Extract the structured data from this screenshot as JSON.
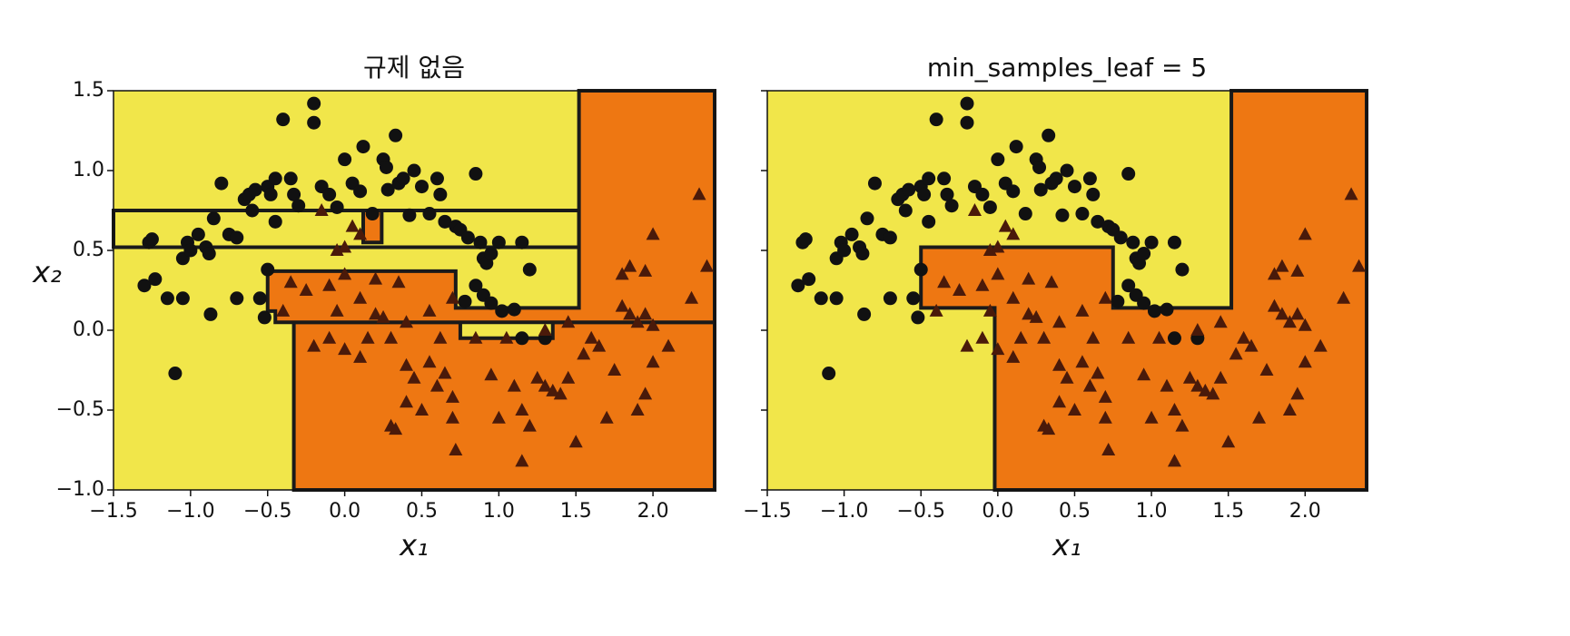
{
  "chart_data": [
    {
      "type": "scatter",
      "title": "규제 없음",
      "x_label": "x₁",
      "y_label": "x₂",
      "xlim": [
        -1.5,
        2.4
      ],
      "ylim": [
        -1.0,
        1.5
      ],
      "xticks": [
        {
          "value": -1.5,
          "label": "−1.5"
        },
        {
          "value": -1.0,
          "label": "−1.0"
        },
        {
          "value": -0.5,
          "label": "−0.5"
        },
        {
          "value": 0.0,
          "label": "0.0"
        },
        0.5,
        {
          "value": 1.0,
          "label": "1.0"
        },
        1.5,
        {
          "value": 2.0,
          "label": "2.0"
        }
      ],
      "yticks": [
        {
          "value": -1.0,
          "label": "−1.0"
        },
        {
          "value": -0.5,
          "label": "−0.5"
        },
        {
          "value": 0.0,
          "label": "0.0"
        },
        0.5,
        {
          "value": 1.0,
          "label": "1.0"
        },
        1.5
      ],
      "ytick_labels": true,
      "background": "#f1e64a",
      "regions": [
        {
          "color": "#f1e64a",
          "polygons": [
            [
              [
                -1.5,
                0.52
              ],
              [
                1.52,
                0.52
              ],
              [
                1.52,
                0.75
              ],
              [
                -1.5,
                0.75
              ]
            ]
          ]
        },
        {
          "color": "#ee7712",
          "polygons": [
            [
              [
                -0.33,
                -1.0
              ],
              [
                -0.33,
                0.05
              ],
              [
                0.75,
                0.05
              ],
              [
                0.75,
                -0.05
              ],
              [
                1.35,
                -0.05
              ],
              [
                1.35,
                0.05
              ],
              [
                2.4,
                0.05
              ],
              [
                2.4,
                -1.0
              ]
            ],
            [
              [
                -0.45,
                0.05
              ],
              [
                -0.45,
                0.12
              ],
              [
                -0.5,
                0.12
              ],
              [
                -0.5,
                0.37
              ],
              [
                0.72,
                0.37
              ],
              [
                0.72,
                0.14
              ],
              [
                1.52,
                0.14
              ],
              [
                1.52,
                1.5
              ],
              [
                2.4,
                1.5
              ],
              [
                2.4,
                0.05
              ]
            ],
            [
              [
                0.12,
                0.55
              ],
              [
                0.24,
                0.55
              ],
              [
                0.24,
                0.75
              ],
              [
                0.12,
                0.75
              ]
            ]
          ]
        }
      ],
      "series": [
        {
          "marker": "circle",
          "color": "#111111",
          "x": [
            -1.27,
            -1.25,
            -1.3,
            -1.23,
            -1.15,
            -1.05,
            -1.1,
            -1.05,
            -1.02,
            -1.0,
            -0.95,
            -0.9,
            -0.88,
            -0.87,
            -0.85,
            -0.8,
            -0.75,
            -0.7,
            -0.7,
            -0.65,
            -0.62,
            -0.6,
            -0.58,
            -0.55,
            -0.52,
            -0.5,
            -0.5,
            -0.48,
            -0.45,
            -0.45,
            -0.4,
            -0.35,
            -0.33,
            -0.3,
            -0.2,
            -0.2,
            -0.15,
            -0.1,
            0.0,
            -0.05,
            0.05,
            0.1,
            0.12,
            0.18,
            0.25,
            0.27,
            0.28,
            0.33,
            0.35,
            0.38,
            0.42,
            0.45,
            0.5,
            0.55,
            0.6,
            0.62,
            0.65,
            0.72,
            0.75,
            0.8,
            0.85,
            0.88,
            0.9,
            0.92,
            0.95,
            1.0,
            0.78,
            0.85,
            0.9,
            0.95,
            1.02,
            1.1,
            1.15,
            1.15,
            1.2,
            1.3
          ],
          "values": [
            0.55,
            0.57,
            0.28,
            0.32,
            0.2,
            0.2,
            -0.27,
            0.45,
            0.55,
            0.5,
            0.6,
            0.52,
            0.48,
            0.1,
            0.7,
            0.92,
            0.6,
            0.58,
            0.2,
            0.82,
            0.85,
            0.75,
            0.88,
            0.2,
            0.08,
            0.38,
            0.9,
            0.85,
            0.95,
            0.68,
            1.32,
            0.95,
            0.85,
            0.78,
            1.42,
            1.3,
            0.9,
            0.85,
            1.07,
            0.77,
            0.92,
            0.87,
            1.15,
            0.73,
            1.07,
            1.02,
            0.88,
            1.22,
            0.92,
            0.95,
            0.72,
            1.0,
            0.9,
            0.73,
            0.95,
            0.85,
            0.68,
            0.65,
            0.63,
            0.58,
            0.98,
            0.55,
            0.45,
            0.42,
            0.48,
            0.55,
            0.18,
            0.28,
            0.22,
            0.17,
            0.12,
            0.13,
            -0.05,
            0.55,
            0.38,
            -0.05
          ]
        },
        {
          "marker": "triangle",
          "color": "#4a1a0a",
          "x": [
            -0.15,
            -0.05,
            0.0,
            0.1,
            0.05,
            -0.35,
            -0.25,
            -0.1,
            0.0,
            0.1,
            0.2,
            0.35,
            -0.4,
            -0.2,
            -0.1,
            -0.05,
            0.0,
            0.1,
            0.15,
            0.2,
            0.3,
            0.4,
            0.45,
            0.4,
            0.3,
            0.33,
            0.5,
            0.55,
            0.6,
            0.65,
            0.7,
            0.7,
            0.72,
            0.62,
            0.55,
            0.7,
            0.85,
            0.95,
            1.0,
            1.05,
            1.1,
            1.15,
            1.15,
            1.2,
            1.25,
            1.3,
            1.35,
            1.4,
            1.45,
            1.5,
            1.55,
            1.6,
            1.65,
            1.7,
            1.75,
            1.8,
            1.85,
            1.9,
            1.95,
            2.0,
            1.8,
            1.85,
            1.95,
            2.0,
            2.1,
            2.0,
            2.25,
            2.3,
            2.35,
            1.9,
            1.95,
            1.3,
            1.45,
            0.25,
            0.4
          ],
          "values": [
            0.75,
            0.5,
            0.52,
            0.6,
            0.65,
            0.3,
            0.25,
            0.28,
            0.35,
            0.2,
            0.32,
            0.3,
            0.12,
            -0.1,
            -0.05,
            0.12,
            -0.12,
            -0.17,
            -0.05,
            0.1,
            -0.05,
            -0.22,
            -0.3,
            -0.45,
            -0.6,
            -0.62,
            -0.5,
            -0.2,
            -0.35,
            -0.27,
            -0.42,
            -0.55,
            -0.75,
            -0.05,
            0.12,
            0.2,
            -0.05,
            -0.28,
            -0.55,
            -0.05,
            -0.35,
            -0.5,
            -0.82,
            -0.6,
            -0.3,
            -0.35,
            -0.38,
            -0.4,
            -0.3,
            -0.7,
            -0.15,
            -0.05,
            -0.1,
            -0.55,
            -0.25,
            0.15,
            0.1,
            0.05,
            0.1,
            0.03,
            0.35,
            0.4,
            0.37,
            0.6,
            -0.1,
            -0.2,
            0.2,
            0.85,
            0.4,
            -0.5,
            -0.4,
            0.0,
            0.05,
            0.08,
            0.05
          ]
        }
      ]
    },
    {
      "type": "scatter",
      "title": "min_samples_leaf = 5",
      "x_label": "x₁",
      "xlim": [
        -1.5,
        2.4
      ],
      "ylim": [
        -1.0,
        1.5
      ],
      "xticks": [
        {
          "value": -1.5,
          "label": "−1.5"
        },
        {
          "value": -1.0,
          "label": "−1.0"
        },
        {
          "value": -0.5,
          "label": "−0.5"
        },
        {
          "value": 0.0,
          "label": "0.0"
        },
        0.5,
        {
          "value": 1.0,
          "label": "1.0"
        },
        1.5,
        {
          "value": 2.0,
          "label": "2.0"
        }
      ],
      "yticks": [
        -1.0,
        -0.5,
        0.0,
        0.5,
        1.0,
        1.5
      ],
      "ytick_labels": false,
      "background": "#f1e64a",
      "regions": [
        {
          "color": "#ee7712",
          "polygons": [
            [
              [
                -0.02,
                -1.0
              ],
              [
                -0.02,
                0.14
              ],
              [
                -0.5,
                0.14
              ],
              [
                -0.5,
                0.52
              ],
              [
                0.75,
                0.52
              ],
              [
                0.75,
                0.14
              ],
              [
                1.52,
                0.14
              ],
              [
                1.52,
                1.5
              ],
              [
                2.4,
                1.5
              ],
              [
                2.4,
                -1.0
              ]
            ]
          ]
        }
      ],
      "series": [
        {
          "marker": "circle",
          "color": "#111111",
          "x": [
            -1.27,
            -1.25,
            -1.3,
            -1.23,
            -1.15,
            -1.05,
            -1.1,
            -1.05,
            -1.02,
            -1.0,
            -0.95,
            -0.9,
            -0.88,
            -0.87,
            -0.85,
            -0.8,
            -0.75,
            -0.7,
            -0.7,
            -0.65,
            -0.62,
            -0.6,
            -0.58,
            -0.55,
            -0.52,
            -0.5,
            -0.5,
            -0.48,
            -0.45,
            -0.45,
            -0.4,
            -0.35,
            -0.33,
            -0.3,
            -0.2,
            -0.2,
            -0.15,
            -0.1,
            0.0,
            -0.05,
            0.05,
            0.1,
            0.12,
            0.18,
            0.25,
            0.27,
            0.28,
            0.33,
            0.35,
            0.38,
            0.42,
            0.45,
            0.5,
            0.55,
            0.6,
            0.62,
            0.65,
            0.72,
            0.75,
            0.8,
            0.85,
            0.88,
            0.9,
            0.92,
            0.95,
            1.0,
            0.78,
            0.85,
            0.9,
            0.95,
            1.02,
            1.1,
            1.15,
            1.15,
            1.2,
            1.3
          ],
          "values": [
            0.55,
            0.57,
            0.28,
            0.32,
            0.2,
            0.2,
            -0.27,
            0.45,
            0.55,
            0.5,
            0.6,
            0.52,
            0.48,
            0.1,
            0.7,
            0.92,
            0.6,
            0.58,
            0.2,
            0.82,
            0.85,
            0.75,
            0.88,
            0.2,
            0.08,
            0.38,
            0.9,
            0.85,
            0.95,
            0.68,
            1.32,
            0.95,
            0.85,
            0.78,
            1.42,
            1.3,
            0.9,
            0.85,
            1.07,
            0.77,
            0.92,
            0.87,
            1.15,
            0.73,
            1.07,
            1.02,
            0.88,
            1.22,
            0.92,
            0.95,
            0.72,
            1.0,
            0.9,
            0.73,
            0.95,
            0.85,
            0.68,
            0.65,
            0.63,
            0.58,
            0.98,
            0.55,
            0.45,
            0.42,
            0.48,
            0.55,
            0.18,
            0.28,
            0.22,
            0.17,
            0.12,
            0.13,
            -0.05,
            0.55,
            0.38,
            -0.05
          ]
        },
        {
          "marker": "triangle",
          "color": "#4a1a0a",
          "x": [
            -0.15,
            -0.05,
            0.0,
            0.1,
            0.05,
            -0.35,
            -0.25,
            -0.1,
            0.0,
            0.1,
            0.2,
            0.35,
            -0.4,
            -0.2,
            -0.1,
            -0.05,
            0.0,
            0.1,
            0.15,
            0.2,
            0.3,
            0.4,
            0.45,
            0.4,
            0.3,
            0.33,
            0.5,
            0.55,
            0.6,
            0.65,
            0.7,
            0.7,
            0.72,
            0.62,
            0.55,
            0.7,
            0.85,
            0.95,
            1.0,
            1.05,
            1.1,
            1.15,
            1.15,
            1.2,
            1.25,
            1.3,
            1.35,
            1.4,
            1.45,
            1.5,
            1.55,
            1.6,
            1.65,
            1.7,
            1.75,
            1.8,
            1.85,
            1.9,
            1.95,
            2.0,
            1.8,
            1.85,
            1.95,
            2.0,
            2.1,
            2.0,
            2.25,
            2.3,
            2.35,
            1.9,
            1.95,
            1.3,
            1.45,
            0.25,
            0.4
          ],
          "values": [
            0.75,
            0.5,
            0.52,
            0.6,
            0.65,
            0.3,
            0.25,
            0.28,
            0.35,
            0.2,
            0.32,
            0.3,
            0.12,
            -0.1,
            -0.05,
            0.12,
            -0.12,
            -0.17,
            -0.05,
            0.1,
            -0.05,
            -0.22,
            -0.3,
            -0.45,
            -0.6,
            -0.62,
            -0.5,
            -0.2,
            -0.35,
            -0.27,
            -0.42,
            -0.55,
            -0.75,
            -0.05,
            0.12,
            0.2,
            -0.05,
            -0.28,
            -0.55,
            -0.05,
            -0.35,
            -0.5,
            -0.82,
            -0.6,
            -0.3,
            -0.35,
            -0.38,
            -0.4,
            -0.3,
            -0.7,
            -0.15,
            -0.05,
            -0.1,
            -0.55,
            -0.25,
            0.15,
            0.1,
            0.05,
            0.1,
            0.03,
            0.35,
            0.4,
            0.37,
            0.6,
            -0.1,
            -0.2,
            0.2,
            0.85,
            0.4,
            -0.5,
            -0.4,
            0.0,
            0.05,
            0.08,
            0.05
          ]
        }
      ]
    }
  ]
}
